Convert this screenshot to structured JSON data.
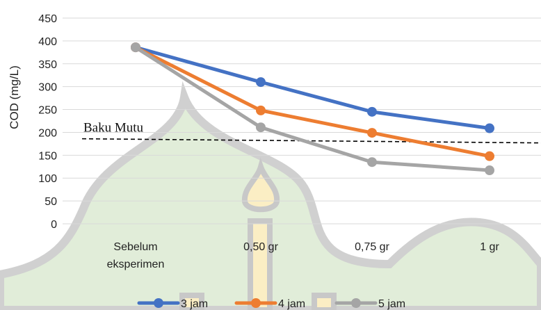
{
  "chart_data": {
    "type": "line",
    "categories": [
      "Sebelum eksperimen",
      "0,50 gr",
      "0,75 gr",
      "1 gr"
    ],
    "category_lines": [
      [
        "Sebelum",
        "eksperimen"
      ],
      [
        "0,50 gr"
      ],
      [
        "0,75 gr"
      ],
      [
        "1 gr"
      ]
    ],
    "series": [
      {
        "name": "3 jam",
        "values": [
          386,
          310,
          245,
          209
        ],
        "color": "#4472C4"
      },
      {
        "name": "4 jam",
        "values": [
          386,
          248,
          199,
          148
        ],
        "color": "#ED7D31"
      },
      {
        "name": "5 jam",
        "values": [
          386,
          211,
          135,
          117
        ],
        "color": "#A5A5A5"
      }
    ],
    "ylabel": "COD (mg/L)",
    "ylim": [
      0,
      450
    ],
    "yticks": [
      0,
      50,
      100,
      150,
      200,
      250,
      300,
      350,
      400,
      450
    ],
    "grid": true,
    "legend": "bottom",
    "annotations": [
      {
        "text": "Baku Mutu",
        "value": 183,
        "style": "dashed-line"
      }
    ],
    "watermark": "mosque-dome"
  }
}
